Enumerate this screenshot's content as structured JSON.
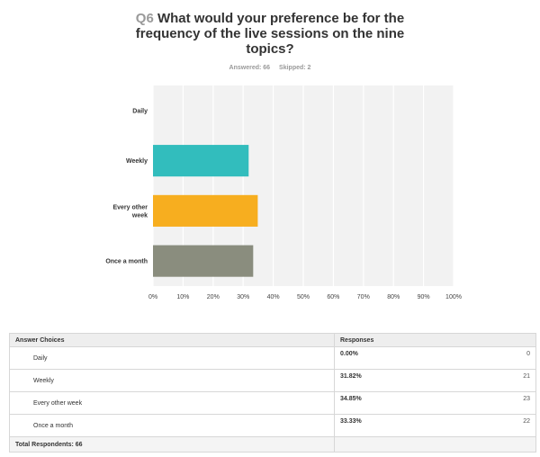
{
  "question": {
    "number": "Q6",
    "text": "What would your preference be for the frequency of the live sessions on the nine topics?",
    "answered": "Answered: 66",
    "skipped": "Skipped: 2"
  },
  "chart_data": {
    "type": "bar",
    "orientation": "horizontal",
    "categories": [
      "Daily",
      "Weekly",
      "Every other week",
      "Once a month"
    ],
    "category_label_lines": [
      [
        "Daily"
      ],
      [
        "Weekly"
      ],
      [
        "Every other",
        "week"
      ],
      [
        "Once a month"
      ]
    ],
    "values": [
      0.0,
      31.82,
      34.85,
      33.33
    ],
    "colors": [
      "#2a8fbd",
      "#32bdbd",
      "#f7ae1f",
      "#8a8d7e"
    ],
    "xlim": [
      0,
      100
    ],
    "xticks": [
      "0%",
      "10%",
      "20%",
      "30%",
      "40%",
      "50%",
      "60%",
      "70%",
      "80%",
      "90%",
      "100%"
    ],
    "grid": true,
    "background": "#f2f2f2"
  },
  "table": {
    "headers": [
      "Answer Choices",
      "Responses"
    ],
    "rows": [
      {
        "choice": "Daily",
        "percent": "0.00%",
        "count": "0"
      },
      {
        "choice": "Weekly",
        "percent": "31.82%",
        "count": "21"
      },
      {
        "choice": "Every other week",
        "percent": "34.85%",
        "count": "23"
      },
      {
        "choice": "Once a month",
        "percent": "33.33%",
        "count": "22"
      }
    ],
    "total": "Total Respondents: 66"
  }
}
